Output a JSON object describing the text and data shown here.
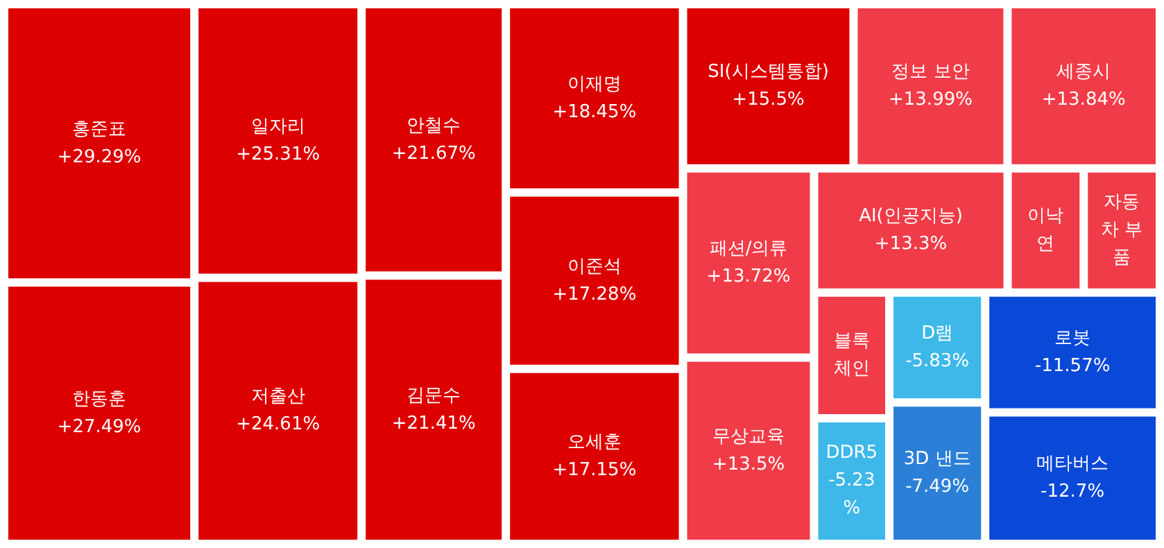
{
  "chart_data": {
    "type": "other",
    "categories": [
      "홍준표",
      "한동훈",
      "일자리",
      "저출산",
      "안철수",
      "김문수",
      "이재명",
      "이준석",
      "오세훈",
      "SI(시스템통합)",
      "정보 보안",
      "세종시",
      "패션/의류",
      "무상교육",
      "AI(인공지능)",
      "이낙연",
      "자동차 부품",
      "블록체인",
      "DDR5",
      "D램",
      "3D 낸드",
      "로봇",
      "메타버스"
    ],
    "values": [
      29.29,
      27.49,
      25.31,
      24.61,
      21.67,
      21.41,
      18.45,
      17.28,
      17.15,
      15.5,
      13.99,
      13.84,
      13.72,
      13.5,
      13.3,
      null,
      null,
      null,
      -5.23,
      -5.83,
      -7.49,
      -11.57,
      -12.7
    ],
    "value_labels": [
      "+29.29%",
      "+27.49%",
      "+25.31%",
      "+24.61%",
      "+21.67%",
      "+21.41%",
      "+18.45%",
      "+17.28%",
      "+17.15%",
      "+15.5%",
      "+13.99%",
      "+13.84%",
      "+13.72%",
      "+13.5%",
      "+13.3%",
      null,
      null,
      null,
      "-5.23%",
      "-5.83%",
      "-7.49%",
      "-11.57%",
      "-12.7%"
    ],
    "colors": [
      "#dd0000",
      "#dd0000",
      "#dd0000",
      "#dd0000",
      "#dd0000",
      "#dd0000",
      "#dd0000",
      "#dd0000",
      "#dd0000",
      "#dd0000",
      "#f03c48",
      "#f03c48",
      "#f03c48",
      "#f03c48",
      "#f03c48",
      "#f03c48",
      "#f03c48",
      "#f03c48",
      "#3db8e8",
      "#3db8e8",
      "#2b7fd6",
      "#0a48d8",
      "#0a48d8"
    ]
  }
}
